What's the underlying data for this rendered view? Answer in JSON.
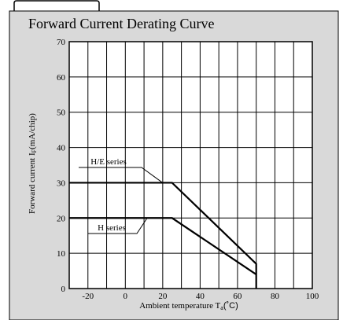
{
  "chart_data": {
    "type": "line",
    "title": "Forward Current Derating Curve",
    "xlabel_main": "Ambient temperature T",
    "xlabel_sub": "a",
    "xlabel_unit": "(˚C)",
    "ylabel_main": "Forward current I",
    "ylabel_sub": "F",
    "ylabel_unit": "(mA/chip)",
    "xlim": [
      -30,
      100
    ],
    "ylim": [
      0,
      70
    ],
    "x_ticks": [
      -20,
      0,
      20,
      40,
      60,
      80,
      100
    ],
    "y_ticks": [
      0,
      10,
      20,
      30,
      40,
      50,
      60,
      70
    ],
    "grid": true,
    "series": [
      {
        "name": "H/E series",
        "x": [
          -30,
          25,
          70,
          70
        ],
        "y": [
          30,
          30,
          7,
          0
        ]
      },
      {
        "name": "H series",
        "x": [
          -30,
          25,
          70
        ],
        "y": [
          20,
          20,
          4
        ]
      }
    ],
    "annotations": [
      {
        "text": "H/E series",
        "series": 0
      },
      {
        "text": "H series",
        "series": 1
      }
    ]
  },
  "colors": {
    "panel_bg": "#d9d9d9",
    "plot_bg": "#ffffff",
    "ink": "#000000",
    "grid": "#000000"
  }
}
